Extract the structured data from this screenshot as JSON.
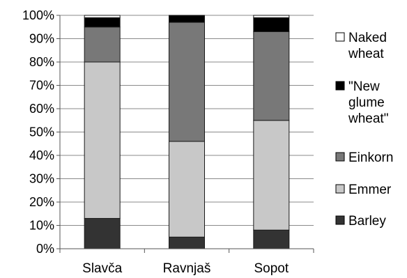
{
  "chart_data": {
    "type": "bar",
    "stacked": true,
    "normalized": true,
    "categories": [
      "Slavča",
      "Ravnjaš",
      "Sopot"
    ],
    "series": [
      {
        "name": "Barley",
        "color": "#333333",
        "values": [
          13,
          5,
          8
        ]
      },
      {
        "name": "Emmer",
        "color": "#c8c8c8",
        "values": [
          67,
          41,
          47
        ]
      },
      {
        "name": "Einkorn",
        "color": "#787878",
        "values": [
          15,
          51,
          38
        ]
      },
      {
        "name": "\"New glume wheat\"",
        "color": "#000000",
        "values": [
          4,
          3,
          6
        ]
      },
      {
        "name": "Naked wheat",
        "color": "#ffffff",
        "values": [
          1,
          0,
          1
        ]
      }
    ],
    "legend_lines": [
      [
        "Barley"
      ],
      [
        "Emmer"
      ],
      [
        "Einkorn"
      ],
      [
        "\"New",
        "glume",
        "wheat\""
      ],
      [
        "Naked",
        "wheat"
      ]
    ],
    "y_ticks": [
      "0%",
      "10%",
      "20%",
      "30%",
      "40%",
      "50%",
      "60%",
      "70%",
      "80%",
      "90%",
      "100%"
    ],
    "ylim": [
      0,
      100
    ],
    "grid": true,
    "legend_position": "right",
    "title": "",
    "xlabel": "",
    "ylabel": ""
  }
}
